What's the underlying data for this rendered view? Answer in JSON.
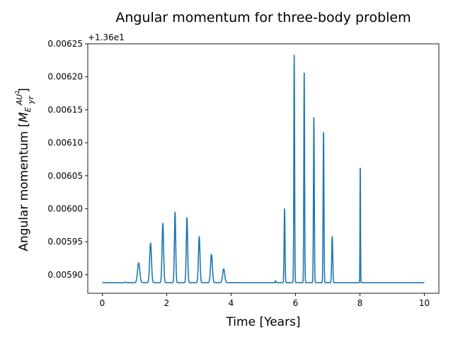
{
  "chart_data": {
    "type": "line",
    "title": "Angular momentum for three-body problem",
    "xlabel": "Time [Years]",
    "ylabel_text": "Angular momentum [",
    "ylabel_unit_base": "M",
    "ylabel_unit_sub": "E",
    "ylabel_unit_num": "AU",
    "ylabel_unit_num_sup": "2",
    "ylabel_unit_den": "yr",
    "ylabel_close": "]",
    "offset_label": "+1.36e1",
    "xlim": [
      -0.45,
      10.45
    ],
    "ylim": [
      0.005872,
      0.00625
    ],
    "xticks": [
      0,
      2,
      4,
      6,
      8,
      10
    ],
    "xtick_labels": [
      "0",
      "2",
      "4",
      "6",
      "8",
      "10"
    ],
    "yticks": [
      0.0059,
      0.00595,
      0.006,
      0.00605,
      0.0061,
      0.00615,
      0.0062,
      0.00625
    ],
    "ytick_labels": [
      "0.00590",
      "0.00595",
      "0.00600",
      "0.00605",
      "0.00610",
      "0.00615",
      "0.00620",
      "0.00625"
    ],
    "grid": false,
    "series": [
      {
        "color": "#1f77b4",
        "baseline": 0.005888,
        "x_range": [
          0,
          10
        ],
        "peaks": [
          {
            "x": 0.72,
            "y": 0.005889,
            "width": 0.02
          },
          {
            "x": 1.13,
            "y": 0.005918,
            "width": 0.035
          },
          {
            "x": 1.5,
            "y": 0.005948,
            "width": 0.028
          },
          {
            "x": 1.88,
            "y": 0.005978,
            "width": 0.024
          },
          {
            "x": 2.26,
            "y": 0.005995,
            "width": 0.02
          },
          {
            "x": 2.63,
            "y": 0.005987,
            "width": 0.021
          },
          {
            "x": 3.01,
            "y": 0.005958,
            "width": 0.024
          },
          {
            "x": 3.39,
            "y": 0.005931,
            "width": 0.028
          },
          {
            "x": 3.77,
            "y": 0.005909,
            "width": 0.032
          },
          {
            "x": 5.38,
            "y": 0.005891,
            "width": 0.01
          },
          {
            "x": 5.66,
            "y": 0.006,
            "width": 0.014
          },
          {
            "x": 5.96,
            "y": 0.006233,
            "width": 0.012
          },
          {
            "x": 6.27,
            "y": 0.00621,
            "width": 0.012
          },
          {
            "x": 6.57,
            "y": 0.006141,
            "width": 0.013
          },
          {
            "x": 6.87,
            "y": 0.006118,
            "width": 0.013
          },
          {
            "x": 7.14,
            "y": 0.005958,
            "width": 0.016
          },
          {
            "x": 8.01,
            "y": 0.006067,
            "width": 0.008
          }
        ]
      }
    ]
  }
}
